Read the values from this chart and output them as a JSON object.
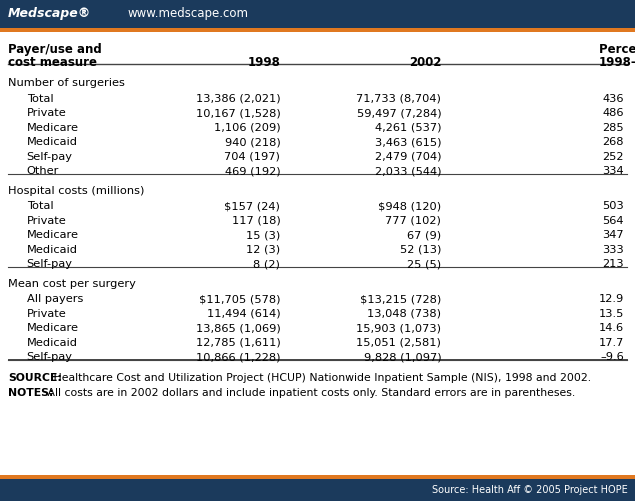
{
  "header_bg_color": "#1b3a5c",
  "accent_color": "#e07820",
  "bg_color": "#ffffff",
  "logo_text": "Medscape®",
  "website_text": "www.medscape.com",
  "footer_text": "Source: Health Aff © 2005 Project HOPE",
  "sections": [
    {
      "title": "Number of surgeries",
      "rows": [
        [
          "Total",
          "13,386 (2,021)",
          "71,733 (8,704)",
          "436"
        ],
        [
          "Private",
          "10,167 (1,528)",
          "59,497 (7,284)",
          "486"
        ],
        [
          "Medicare",
          "1,106 (209)",
          "4,261 (537)",
          "285"
        ],
        [
          "Medicaid",
          "940 (218)",
          "3,463 (615)",
          "268"
        ],
        [
          "Self-pay",
          "704 (197)",
          "2,479 (704)",
          "252"
        ],
        [
          "Other",
          "469 (192)",
          "2,033 (544)",
          "334"
        ]
      ]
    },
    {
      "title": "Hospital costs (millions)",
      "rows": [
        [
          "Total",
          "$157 (24)",
          "$948 (120)",
          "503"
        ],
        [
          "Private",
          "117 (18)",
          "777 (102)",
          "564"
        ],
        [
          "Medicare",
          "15 (3)",
          "67 (9)",
          "347"
        ],
        [
          "Medicaid",
          "12 (3)",
          "52 (13)",
          "333"
        ],
        [
          "Self-pay",
          "8 (2)",
          "25 (5)",
          "213"
        ]
      ]
    },
    {
      "title": "Mean cost per surgery",
      "rows": [
        [
          "All payers",
          "$11,705 (578)",
          "$13,215 (728)",
          "12.9"
        ],
        [
          "Private",
          "11,494 (614)",
          "13,048 (738)",
          "13.5"
        ],
        [
          "Medicare",
          "13,865 (1,069)",
          "15,903 (1,073)",
          "14.6"
        ],
        [
          "Medicaid",
          "12,785 (1,611)",
          "15,051 (2,581)",
          "17.7"
        ],
        [
          "Self-pay",
          "10,866 (1,228)",
          "9,828 (1,097)",
          "–9.6"
        ]
      ]
    }
  ],
  "source_bold": "SOURCE:",
  "source_rest": " Healthcare Cost and Utilization Project (HCUP) Nationwide Inpatient Sample (NIS), 1998 and 2002.",
  "notes_bold": "NOTES:",
  "notes_rest": " All costs are in 2002 dollars and include inpatient costs only. Standard errors are in parentheses."
}
